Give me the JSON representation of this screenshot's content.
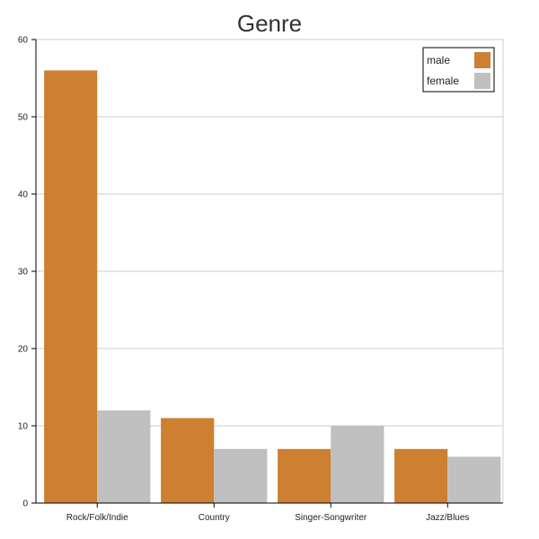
{
  "chart_data": {
    "type": "bar",
    "title": "Genre",
    "xlabel": "",
    "ylabel": "",
    "categories": [
      "Rock/Folk/Indie",
      "Country",
      "Singer-Songwriter",
      "Jazz/Blues"
    ],
    "series": [
      {
        "name": "male",
        "values": [
          56,
          11,
          7,
          7
        ],
        "color": "#cd7f32"
      },
      {
        "name": "female",
        "values": [
          12,
          7,
          10,
          6
        ],
        "color": "#c0c0c0"
      }
    ],
    "ylim": [
      0,
      60
    ],
    "yticks": [
      0,
      10,
      20,
      30,
      40,
      50,
      60
    ],
    "grid": true,
    "legend_position": "top-right"
  }
}
